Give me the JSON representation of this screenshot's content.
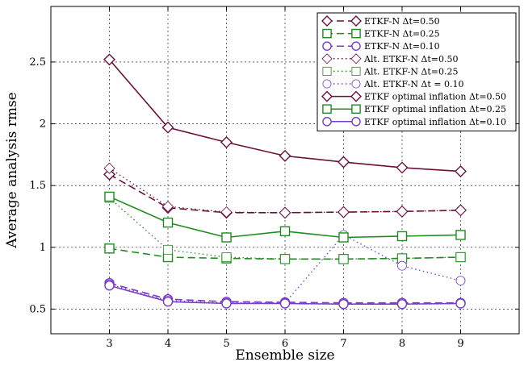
{
  "chart_data": {
    "type": "line",
    "xlabel": "Ensemble size",
    "ylabel": "Average analysis rmse",
    "xlim": [
      2,
      10
    ],
    "ylim": [
      0.3,
      2.95
    ],
    "x_ticks": [
      3,
      4,
      5,
      6,
      7,
      8,
      9
    ],
    "y_ticks": [
      0.5,
      1,
      1.5,
      2,
      2.5
    ],
    "y_tick_labels": [
      "0.5",
      "1",
      "1.5",
      "2",
      "2.5"
    ],
    "grid": true,
    "legend_position": "top-right",
    "x": [
      3,
      4,
      5,
      6,
      7,
      8,
      9
    ],
    "series": [
      {
        "name": "ETKF-N  Δt=0.50",
        "color": "#6b0f3a",
        "linestyle": "dashed",
        "marker": "diamond",
        "values": [
          1.59,
          1.32,
          1.28,
          1.28,
          1.285,
          1.29,
          1.3
        ]
      },
      {
        "name": "ETKF-N  Δt=0.25",
        "color": "#1e8c1e",
        "linestyle": "dashed",
        "marker": "square",
        "values": [
          0.99,
          0.92,
          0.91,
          0.905,
          0.905,
          0.91,
          0.92
        ]
      },
      {
        "name": "ETKF-N  Δt=0.10",
        "color": "#7a3cc8",
        "linestyle": "dashed",
        "marker": "circle",
        "values": [
          0.71,
          0.58,
          0.56,
          0.555,
          0.55,
          0.55,
          0.55
        ]
      },
      {
        "name": "Alt. ETKF-N Δt=0.50",
        "color": "#6b0f3a",
        "linestyle": "dotted",
        "marker": "diamond-light",
        "values": [
          1.64,
          1.33,
          1.285,
          1.28,
          1.285,
          1.29,
          1.3
        ]
      },
      {
        "name": "Alt. ETKF-N Δt=0.25",
        "color": "#1e8c1e",
        "linestyle": "dotted",
        "marker": "square-light",
        "values": [
          1.4,
          0.98,
          0.92,
          0.905,
          0.905,
          0.91,
          0.92
        ]
      },
      {
        "name": "Alt. ETKF-N Δt = 0.10",
        "color": "#7a3cc8",
        "linestyle": "dotted",
        "marker": "circle-light",
        "values": [
          0.7,
          0.57,
          0.55,
          0.55,
          1.1,
          0.85,
          0.73
        ]
      },
      {
        "name": "ETKF optimal inflation  Δt=0.50",
        "color": "#6b0f3a",
        "linestyle": "solid",
        "marker": "diamond",
        "values": [
          2.52,
          1.97,
          1.85,
          1.74,
          1.69,
          1.645,
          1.615
        ]
      },
      {
        "name": "ETKF optimal inflation  Δt=0.25",
        "color": "#1e8c1e",
        "linestyle": "solid",
        "marker": "square",
        "values": [
          1.41,
          1.2,
          1.08,
          1.13,
          1.08,
          1.09,
          1.1
        ]
      },
      {
        "name": "ETKF optimal inflation  Δt=0.10",
        "color": "#7a3cc8",
        "linestyle": "solid",
        "marker": "circle",
        "values": [
          0.69,
          0.56,
          0.545,
          0.545,
          0.54,
          0.54,
          0.545
        ]
      }
    ]
  }
}
